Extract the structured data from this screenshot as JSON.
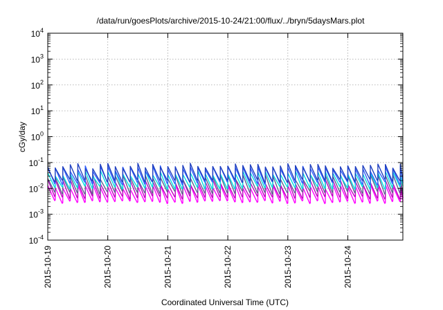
{
  "chart_data": {
    "type": "line",
    "title": "/data/run/goesPlots/archive/2015-10-24/21:00/flux/../bryn/5daysMars.plot",
    "xlabel": "Coordinated Universal Time (UTC)",
    "ylabel": "cGy/day",
    "x_range": [
      "2015-10-19 00:00",
      "2015-10-24 22:00"
    ],
    "x_ticks": [
      "2015-10-19",
      "2015-10-20",
      "2015-10-21",
      "2015-10-22",
      "2015-10-23",
      "2015-10-24"
    ],
    "y_scale": "log",
    "ylim": [
      0.0001,
      10000
    ],
    "y_ticks": [
      {
        "base": "10",
        "exp": "-4"
      },
      {
        "base": "10",
        "exp": "-3"
      },
      {
        "base": "10",
        "exp": "-2"
      },
      {
        "base": "10",
        "exp": "-1"
      },
      {
        "base": "10",
        "exp": "0"
      },
      {
        "base": "10",
        "exp": "1"
      },
      {
        "base": "10",
        "exp": "2"
      },
      {
        "base": "10",
        "exp": "3"
      },
      {
        "base": "10",
        "exp": "4"
      }
    ],
    "grid": true,
    "legend": "none",
    "sawtooth_period_hours": 3,
    "series": [
      {
        "color": "#ff00ff",
        "peak": 0.012,
        "trough": 0.003
      },
      {
        "color": "#c000c0",
        "peak": 0.018,
        "trough": 0.0045
      },
      {
        "color": "#606090",
        "peak": 0.028,
        "trough": 0.007
      },
      {
        "color": "#00e0e0",
        "peak": 0.04,
        "trough": 0.011
      },
      {
        "color": "#3060ff",
        "peak": 0.06,
        "trough": 0.016
      },
      {
        "color": "#2040c0",
        "peak": 0.075,
        "trough": 0.02
      }
    ]
  }
}
